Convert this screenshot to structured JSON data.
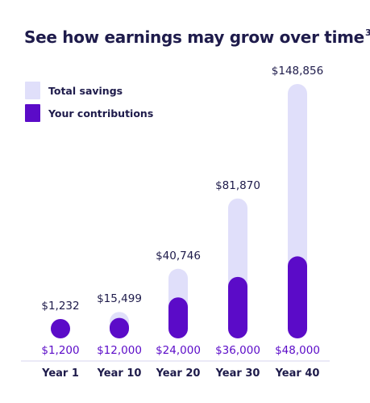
{
  "title": "See how earnings may grow over time",
  "title_footnote": "3",
  "colors": {
    "total_savings": "#e0dffa",
    "contributions": "#5b0bc8",
    "text_dark": "#1e1b4b",
    "axis_line": "#d7d5ef"
  },
  "chart_data": {
    "type": "bar",
    "title": "See how earnings may grow over time",
    "categories": [
      "Year 1",
      "Year 10",
      "Year 20",
      "Year 30",
      "Year 40"
    ],
    "series": [
      {
        "name": "Total savings",
        "values": [
          1232,
          15499,
          40746,
          81870,
          148856
        ],
        "value_labels": [
          "$1,232",
          "$15,499",
          "$40,746",
          "$81,870",
          "$148,856"
        ]
      },
      {
        "name": "Your contributions",
        "values": [
          1200,
          12000,
          24000,
          36000,
          48000
        ],
        "value_labels": [
          "$1,200",
          "$12,000",
          "$24,000",
          "$36,000",
          "$48,000"
        ]
      }
    ],
    "legend_position": "top-left",
    "grid": false
  }
}
